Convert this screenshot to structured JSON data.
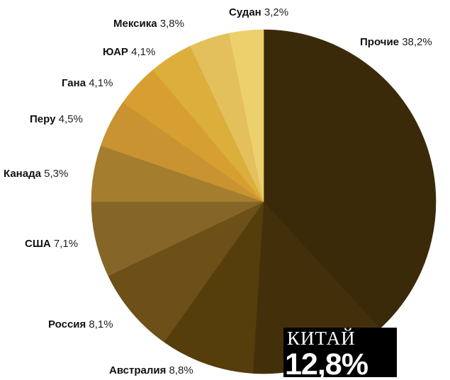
{
  "chart_data": {
    "type": "pie",
    "title": "",
    "slices": [
      {
        "label": "Прочие",
        "value": 38.2,
        "display": "38,2%",
        "color": "#3a2a0a"
      },
      {
        "label": "Китай",
        "value": 12.8,
        "display": "12,8%",
        "color": "#432f0a"
      },
      {
        "label": "Австралия",
        "value": 8.8,
        "display": "8,8%",
        "color": "#553d0c"
      },
      {
        "label": "Россия",
        "value": 8.1,
        "display": "8,1%",
        "color": "#6d5017"
      },
      {
        "label": "США",
        "value": 7.1,
        "display": "7,1%",
        "color": "#866628"
      },
      {
        "label": "Канада",
        "value": 5.3,
        "display": "5,3%",
        "color": "#a47e2e"
      },
      {
        "label": "Перу",
        "value": 4.5,
        "display": "4,5%",
        "color": "#c89330"
      },
      {
        "label": "Гана",
        "value": 4.1,
        "display": "4,1%",
        "color": "#d79f32"
      },
      {
        "label": "ЮАР",
        "value": 4.1,
        "display": "4,1%",
        "color": "#dcae3c"
      },
      {
        "label": "Мексика",
        "value": 3.8,
        "display": "3,8%",
        "color": "#e3c05c"
      },
      {
        "label": "Судан",
        "value": 3.2,
        "display": "3,2%",
        "color": "#ecd06c"
      }
    ],
    "highlight": {
      "label": "КИТАЙ",
      "display": "12,8%",
      "background": "#000000",
      "text_color": "#ffffff"
    },
    "label_colors": {
      "name": "#111111",
      "percent": "#222222"
    }
  }
}
